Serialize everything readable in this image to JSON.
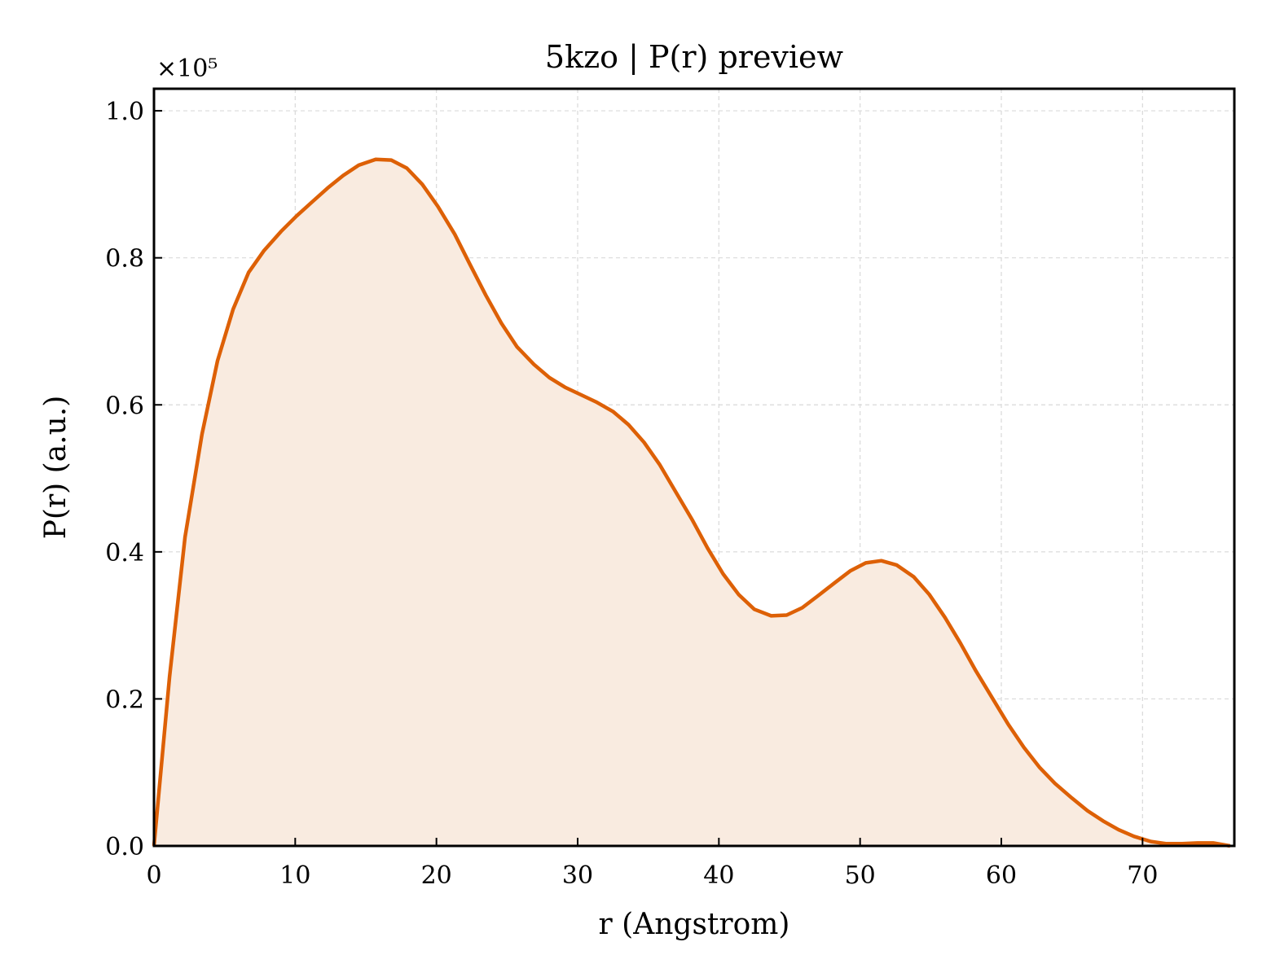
{
  "chart_data": {
    "type": "area",
    "title": "5kzo | P(r) preview",
    "xlabel": "r (Angstrom)",
    "ylabel": "P(r) (a.u.)",
    "y_multiplier": "×10⁵",
    "xlim": [
      0,
      76.5
    ],
    "ylim": [
      0,
      1.03
    ],
    "x_ticks": [
      0,
      10,
      20,
      30,
      40,
      50,
      60,
      70
    ],
    "x_tick_labels": [
      "0",
      "10",
      "20",
      "30",
      "40",
      "50",
      "60",
      "70"
    ],
    "y_ticks": [
      0,
      0.2,
      0.4,
      0.6,
      0.8,
      1.0
    ],
    "y_tick_labels": [
      "0.0",
      "0.2",
      "0.4",
      "0.6",
      "0.8",
      "1.0"
    ],
    "grid": true,
    "line_color": "#dd6006",
    "fill_color": "#f9ebe0",
    "series": [
      {
        "x": [
          0,
          1.1,
          2.2,
          3.4,
          4.5,
          5.6,
          6.7,
          7.8,
          9.0,
          10.1,
          11.2,
          12.3,
          13.4,
          14.5,
          15.7,
          16.8,
          17.9,
          19.0,
          20.1,
          21.3,
          22.4,
          23.5,
          24.6,
          25.7,
          26.9,
          28.0,
          29.1,
          30.2,
          31.3,
          32.5,
          33.6,
          34.7,
          35.8,
          36.9,
          38.1,
          39.2,
          40.3,
          41.4,
          42.5,
          43.7,
          44.8,
          45.9,
          47.0,
          48.2,
          49.3,
          50.4,
          51.5,
          52.6,
          53.8,
          54.9,
          56.0,
          57.1,
          58.2,
          59.4,
          60.5,
          61.6,
          62.7,
          63.8,
          65.0,
          66.1,
          67.2,
          68.3,
          69.4,
          70.6,
          71.7,
          72.8,
          73.9,
          75.0,
          76.2
        ],
        "y": [
          0.0,
          0.23,
          0.42,
          0.56,
          0.66,
          0.73,
          0.78,
          0.81,
          0.836,
          0.857,
          0.876,
          0.895,
          0.912,
          0.926,
          0.934,
          0.933,
          0.922,
          0.9,
          0.87,
          0.832,
          0.79,
          0.749,
          0.711,
          0.679,
          0.655,
          0.637,
          0.624,
          0.614,
          0.604,
          0.591,
          0.573,
          0.549,
          0.519,
          0.483,
          0.444,
          0.405,
          0.37,
          0.342,
          0.322,
          0.313,
          0.314,
          0.324,
          0.34,
          0.358,
          0.374,
          0.385,
          0.388,
          0.382,
          0.366,
          0.342,
          0.311,
          0.276,
          0.238,
          0.2,
          0.165,
          0.134,
          0.107,
          0.085,
          0.065,
          0.048,
          0.034,
          0.022,
          0.013,
          0.006,
          0.003,
          0.003,
          0.004,
          0.004,
          0.0
        ]
      }
    ]
  }
}
